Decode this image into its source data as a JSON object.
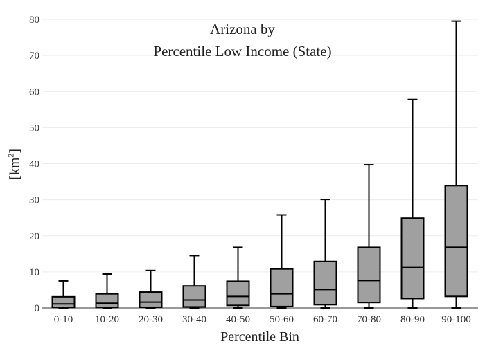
{
  "chart_data": {
    "type": "box",
    "title_lines": [
      "Arizona  by",
      "Percentile Low Income (State)"
    ],
    "xlabel": "Percentile Bin",
    "ylabel_base": "[km",
    "ylabel_sup": "2",
    "ylabel_end": "]",
    "ylim": [
      0,
      80
    ],
    "yticks": [
      0,
      10,
      20,
      30,
      40,
      50,
      60,
      70,
      80
    ],
    "grid": true,
    "categories": [
      "0-10",
      "10-20",
      "20-30",
      "30-40",
      "40-50",
      "50-60",
      "60-70",
      "70-80",
      "80-90",
      "90-100"
    ],
    "boxes": [
      {
        "min": 0,
        "q1": 0.1,
        "median": 1.1,
        "q3": 3.1,
        "max": 7.5
      },
      {
        "min": 0,
        "q1": 0.1,
        "median": 1.3,
        "q3": 3.9,
        "max": 9.4
      },
      {
        "min": 0,
        "q1": 0.2,
        "median": 1.6,
        "q3": 4.4,
        "max": 10.4
      },
      {
        "min": 0,
        "q1": 0.3,
        "median": 2.2,
        "q3": 6.1,
        "max": 14.5
      },
      {
        "min": 0,
        "q1": 0.7,
        "median": 3.2,
        "q3": 7.4,
        "max": 16.8
      },
      {
        "min": 0,
        "q1": 0.4,
        "median": 3.9,
        "q3": 10.8,
        "max": 25.8
      },
      {
        "min": 0,
        "q1": 0.9,
        "median": 5.1,
        "q3": 12.9,
        "max": 30.1
      },
      {
        "min": 0,
        "q1": 1.5,
        "median": 7.6,
        "q3": 16.8,
        "max": 39.7
      },
      {
        "min": 0,
        "q1": 2.6,
        "median": 11.2,
        "q3": 24.9,
        "max": 57.8
      },
      {
        "min": 0,
        "q1": 3.2,
        "median": 16.8,
        "q3": 33.9,
        "max": 79.5
      }
    ],
    "colors": {
      "box_fill": "#a0a0a0",
      "stroke": "#000000",
      "grid": "#ececec",
      "axis": "#333333"
    }
  }
}
